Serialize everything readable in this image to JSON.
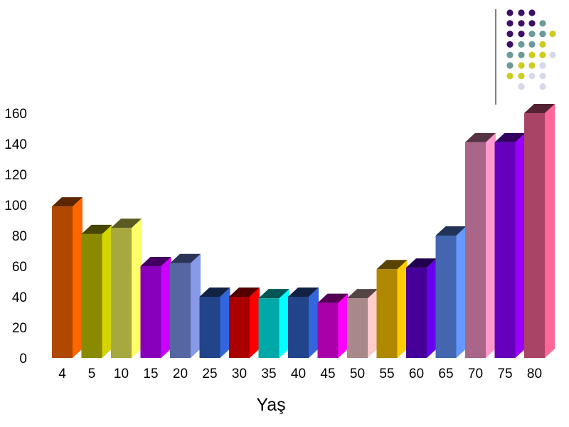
{
  "chart_data": {
    "type": "bar",
    "style": "3d-column",
    "title": "",
    "xlabel": "Yaş",
    "ylabel": "",
    "ylim": [
      0,
      160
    ],
    "y_ticks": [
      "0",
      "20",
      "40",
      "60",
      "80",
      "100",
      "120",
      "140",
      "160"
    ],
    "grid": false,
    "legend_position": "top-right",
    "categories": [
      "4",
      "5",
      "10",
      "15",
      "20",
      "25",
      "30",
      "35",
      "40",
      "45",
      "50",
      "55",
      "60",
      "65",
      "70",
      "75",
      "80"
    ],
    "values": [
      99,
      81,
      85,
      60,
      62,
      40,
      40,
      39,
      40,
      36,
      39,
      58,
      59,
      80,
      141,
      141,
      160
    ],
    "colors": [
      {
        "front": "#b04800",
        "side": "#ff6600",
        "top": "#5c2500"
      },
      {
        "front": "#8a8a00",
        "side": "#d4d400",
        "top": "#464600"
      },
      {
        "front": "#a8a840",
        "side": "#ffff66",
        "top": "#5a5a22"
      },
      {
        "front": "#8800bb",
        "side": "#cc00ff",
        "top": "#440060"
      },
      {
        "front": "#5566a0",
        "side": "#8899e8",
        "top": "#2a3358"
      },
      {
        "front": "#22448a",
        "side": "#3366dd",
        "top": "#112244"
      },
      {
        "front": "#aa0000",
        "side": "#ff0000",
        "top": "#550000"
      },
      {
        "front": "#00a8a8",
        "side": "#00ffff",
        "top": "#005555"
      },
      {
        "front": "#22448a",
        "side": "#3366dd",
        "top": "#112244"
      },
      {
        "front": "#aa00aa",
        "side": "#ff00ff",
        "top": "#550055"
      },
      {
        "front": "#a88888",
        "side": "#ffcccc",
        "top": "#554444"
      },
      {
        "front": "#b08800",
        "side": "#ffcc00",
        "top": "#584400"
      },
      {
        "front": "#440099",
        "side": "#6600ee",
        "top": "#220050"
      },
      {
        "front": "#4466b0",
        "side": "#6699ff",
        "top": "#223358"
      },
      {
        "front": "#aa6688",
        "side": "#ff99cc",
        "top": "#553344"
      },
      {
        "front": "#6600bb",
        "side": "#9900ff",
        "top": "#330060"
      },
      {
        "front": "#aa4466",
        "side": "#ff6699",
        "top": "#552233"
      }
    ],
    "legend_dot_colors": [
      "#3d1066",
      "#6a9a9a",
      "#cccc22",
      "#d8d8ec"
    ]
  }
}
